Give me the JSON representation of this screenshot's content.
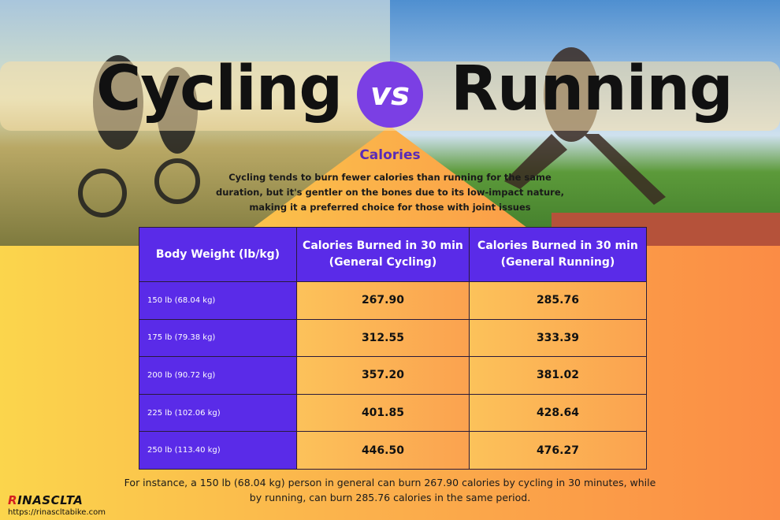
{
  "header": {
    "left": "Cycling",
    "vs": "vs",
    "right": "Running"
  },
  "section": {
    "title": "Calories",
    "description": "Cycling tends to burn fewer calories than running for the same duration, but it's gentler on the bones due to its low-impact nature, making it a preferred choice for those with joint issues"
  },
  "table": {
    "columns": [
      "Body Weight (lb/kg)",
      "Calories Burned in 30 min (General Cycling)",
      "Calories Burned in 30 min (General Running)"
    ],
    "rows": [
      [
        "150 lb (68.04 kg)",
        "267.90",
        "285.76"
      ],
      [
        "175 lb (79.38 kg)",
        "312.55",
        "333.39"
      ],
      [
        "200 lb (90.72 kg)",
        "357.20",
        "381.02"
      ],
      [
        "225 lb (102.06 kg)",
        "401.85",
        "428.64"
      ],
      [
        "250 lb (113.40 kg)",
        "446.50",
        "476.27"
      ]
    ]
  },
  "note": "For instance, a 150 lb (68.04 kg) person in general can burn 267.90 calories by cycling in 30 minutes, while by running, can burn 285.76 calories in the same period.",
  "footer": {
    "logo": "RINASCLTA",
    "url": "https://rinascltabike.com"
  }
}
